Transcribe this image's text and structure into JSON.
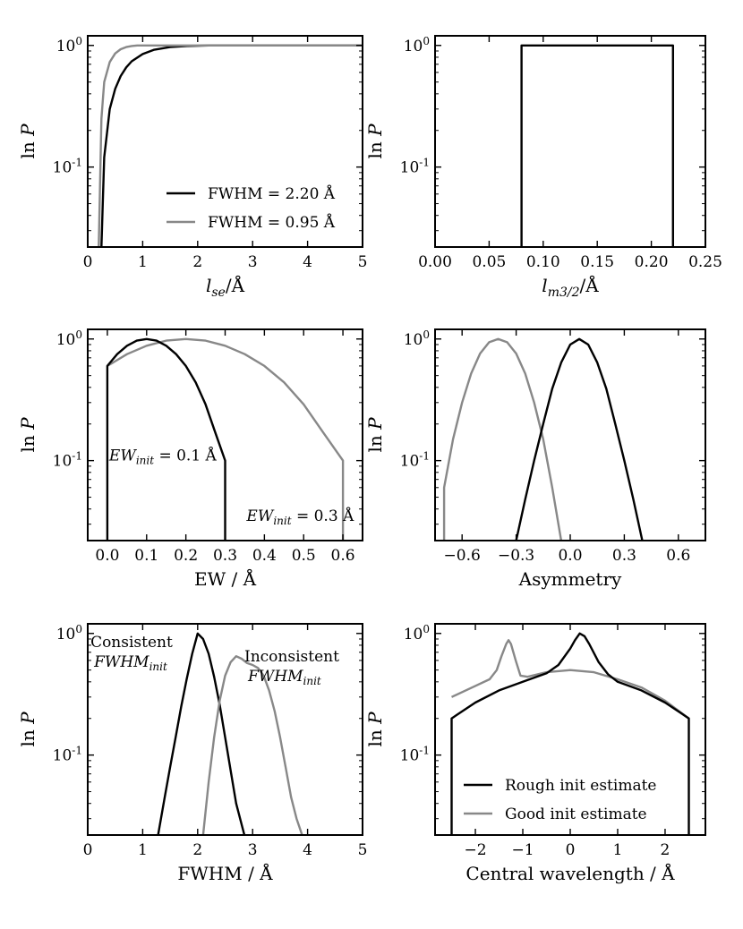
{
  "chart_data": [
    {
      "id": "p1",
      "type": "line",
      "xlabel_main": "l",
      "xlabel_sub": "se",
      "xlabel_suffix": "/Å",
      "ylabel_main": "ln ",
      "ylabel_var": "P",
      "xlim": [
        0,
        5
      ],
      "xticks": [
        0,
        1,
        2,
        3,
        4,
        5
      ],
      "xtick_labels": [
        "0",
        "1",
        "2",
        "3",
        "4",
        "5"
      ],
      "ylog": true,
      "ylim": [
        0.022,
        1.2
      ],
      "yticks": [
        {
          "v": 1,
          "base": "10",
          "exp": "0"
        },
        {
          "v": 0.1,
          "base": "10",
          "exp": "-1"
        }
      ],
      "series": [
        {
          "name": "FWHM = 2.20 Å",
          "color": "#000000",
          "x": [
            0.25,
            0.3,
            0.4,
            0.5,
            0.6,
            0.7,
            0.8,
            1.0,
            1.2,
            1.5,
            1.8,
            2.2,
            3.0,
            5.0
          ],
          "y": [
            0.022,
            0.12,
            0.3,
            0.44,
            0.56,
            0.66,
            0.74,
            0.85,
            0.92,
            0.97,
            0.99,
            1.0,
            1.0,
            1.0
          ]
        },
        {
          "name": "FWHM = 0.95 Å",
          "color": "#888888",
          "x": [
            0.2,
            0.25,
            0.3,
            0.4,
            0.5,
            0.6,
            0.7,
            0.8,
            0.9,
            1.0,
            5.0
          ],
          "y": [
            0.022,
            0.25,
            0.5,
            0.73,
            0.86,
            0.93,
            0.97,
            0.99,
            1.0,
            1.0,
            1.0
          ]
        }
      ],
      "legend": [
        {
          "label": "FWHM = 2.20 Å",
          "color": "#000000"
        },
        {
          "label": "FWHM = 0.95 Å",
          "color": "#888888"
        }
      ],
      "legend_position": "lower-right"
    },
    {
      "id": "p2",
      "type": "line",
      "xlabel_main": "l",
      "xlabel_sub": "m3/2",
      "xlabel_suffix": "/Å",
      "ylabel_main": "ln ",
      "ylabel_var": "P",
      "xlim": [
        0,
        0.25
      ],
      "xticks": [
        0,
        0.05,
        0.1,
        0.15,
        0.2,
        0.25
      ],
      "xtick_labels": [
        "0.00",
        "0.05",
        "0.10",
        "0.15",
        "0.20",
        "0.25"
      ],
      "ylog": true,
      "ylim": [
        0.022,
        1.2
      ],
      "yticks": [
        {
          "v": 1,
          "base": "10",
          "exp": "0"
        },
        {
          "v": 0.1,
          "base": "10",
          "exp": "-1"
        }
      ],
      "series": [
        {
          "color": "#000000",
          "x": [
            0.08,
            0.08,
            0.22,
            0.22
          ],
          "y": [
            0.022,
            1.0,
            1.0,
            0.022
          ]
        }
      ]
    },
    {
      "id": "p3",
      "type": "line",
      "xlabel": "EW / Å",
      "ylabel_main": "ln ",
      "ylabel_var": "P",
      "xlim": [
        -0.05,
        0.65
      ],
      "xticks": [
        0,
        0.1,
        0.2,
        0.3,
        0.4,
        0.5,
        0.6
      ],
      "xtick_labels": [
        "0.0",
        "0.1",
        "0.2",
        "0.3",
        "0.4",
        "0.5",
        "0.6"
      ],
      "ylog": true,
      "ylim": [
        0.022,
        1.2
      ],
      "yticks": [
        {
          "v": 1,
          "base": "10",
          "exp": "0"
        },
        {
          "v": 0.1,
          "base": "10",
          "exp": "-1"
        }
      ],
      "series": [
        {
          "color": "#888888",
          "x": [
            0.0,
            0.05,
            0.1,
            0.15,
            0.2,
            0.25,
            0.3,
            0.35,
            0.4,
            0.45,
            0.5,
            0.55,
            0.6,
            0.6
          ],
          "y": [
            0.6,
            0.75,
            0.88,
            0.97,
            1.0,
            0.97,
            0.88,
            0.75,
            0.6,
            0.44,
            0.29,
            0.17,
            0.1,
            0.022
          ]
        },
        {
          "color": "#000000",
          "x": [
            0.0,
            0.0,
            0.025,
            0.05,
            0.075,
            0.1,
            0.125,
            0.15,
            0.175,
            0.2,
            0.225,
            0.25,
            0.275,
            0.3,
            0.3
          ],
          "y": [
            0.022,
            0.6,
            0.75,
            0.88,
            0.97,
            1.0,
            0.97,
            0.88,
            0.75,
            0.6,
            0.44,
            0.29,
            0.17,
            0.1,
            0.022
          ]
        }
      ],
      "annotations": [
        {
          "main": "EW",
          "sub": "init",
          "rest": " = 0.1 Å",
          "x": 0.0,
          "y": 0.1
        },
        {
          "main": "EW",
          "sub": "init",
          "rest": " = 0.3 Å",
          "x": 0.35,
          "y": 0.032
        }
      ]
    },
    {
      "id": "p4",
      "type": "line",
      "xlabel": "Asymmetry",
      "ylabel_main": "ln ",
      "ylabel_var": "P",
      "xlim": [
        -0.75,
        0.75
      ],
      "xticks": [
        -0.6,
        -0.3,
        0,
        0.3,
        0.6
      ],
      "xtick_labels": [
        "−0.6",
        "−0.3",
        "0.0",
        "0.3",
        "0.6"
      ],
      "ylog": true,
      "ylim": [
        0.022,
        1.2
      ],
      "yticks": [
        {
          "v": 1,
          "base": "10",
          "exp": "0"
        },
        {
          "v": 0.1,
          "base": "10",
          "exp": "-1"
        }
      ],
      "series": [
        {
          "color": "#888888",
          "x": [
            -0.7,
            -0.7,
            -0.65,
            -0.6,
            -0.55,
            -0.5,
            -0.45,
            -0.4,
            -0.35,
            -0.3,
            -0.25,
            -0.2,
            -0.15,
            -0.1,
            -0.05
          ],
          "y": [
            0.022,
            0.06,
            0.15,
            0.3,
            0.52,
            0.76,
            0.94,
            1.0,
            0.94,
            0.76,
            0.52,
            0.3,
            0.15,
            0.06,
            0.022
          ]
        },
        {
          "color": "#000000",
          "x": [
            -0.3,
            -0.25,
            -0.2,
            -0.15,
            -0.1,
            -0.05,
            0.0,
            0.05,
            0.1,
            0.15,
            0.2,
            0.25,
            0.3,
            0.35,
            0.4
          ],
          "y": [
            0.022,
            0.048,
            0.1,
            0.2,
            0.39,
            0.64,
            0.9,
            1.0,
            0.9,
            0.64,
            0.39,
            0.2,
            0.1,
            0.048,
            0.022
          ]
        }
      ]
    },
    {
      "id": "p5",
      "type": "line",
      "xlabel": "FWHM / Å",
      "ylabel_main": "ln ",
      "ylabel_var": "P",
      "xlim": [
        0,
        5
      ],
      "xticks": [
        0,
        1,
        2,
        3,
        4,
        5
      ],
      "xtick_labels": [
        "0",
        "1",
        "2",
        "3",
        "4",
        "5"
      ],
      "ylog": true,
      "ylim": [
        0.022,
        1.2
      ],
      "yticks": [
        {
          "v": 1,
          "base": "10",
          "exp": "0"
        },
        {
          "v": 0.1,
          "base": "10",
          "exp": "-1"
        }
      ],
      "series": [
        {
          "color": "#000000",
          "x": [
            1.28,
            1.4,
            1.5,
            1.6,
            1.7,
            1.8,
            1.9,
            2.0,
            2.1,
            2.2,
            2.3,
            2.4,
            2.5,
            2.6,
            2.7,
            2.85
          ],
          "y": [
            0.022,
            0.045,
            0.08,
            0.14,
            0.25,
            0.42,
            0.68,
            1.0,
            0.9,
            0.68,
            0.44,
            0.26,
            0.14,
            0.075,
            0.04,
            0.022
          ]
        },
        {
          "color": "#888888",
          "x": [
            2.1,
            2.2,
            2.3,
            2.4,
            2.5,
            2.6,
            2.7,
            2.8,
            2.9,
            3.0,
            3.1,
            3.2,
            3.3,
            3.4,
            3.5,
            3.6,
            3.7,
            3.8,
            3.9
          ],
          "y": [
            0.022,
            0.06,
            0.14,
            0.28,
            0.45,
            0.58,
            0.65,
            0.62,
            0.57,
            0.55,
            0.52,
            0.45,
            0.34,
            0.23,
            0.14,
            0.08,
            0.045,
            0.03,
            0.022
          ]
        }
      ],
      "annotations": [
        {
          "title": "Consistent",
          "main": "FWHM",
          "sub": "init",
          "x": 0.05,
          "y": 0.95
        },
        {
          "title": "Inconsistent",
          "main": "FWHM",
          "sub": "init",
          "x": 2.85,
          "y": 0.72
        }
      ]
    },
    {
      "id": "p6",
      "type": "line",
      "xlabel": "Central wavelength / Å",
      "ylabel_main": "ln ",
      "ylabel_var": "P",
      "xlim": [
        -2.85,
        2.85
      ],
      "xticks": [
        -2,
        -1,
        0,
        1,
        2
      ],
      "xtick_labels": [
        "−2",
        "−1",
        "0",
        "1",
        "2"
      ],
      "ylog": true,
      "ylim": [
        0.022,
        1.2
      ],
      "yticks": [
        {
          "v": 1,
          "base": "10",
          "exp": "0"
        },
        {
          "v": 0.1,
          "base": "10",
          "exp": "-1"
        }
      ],
      "series": [
        {
          "name": "Good init estimate",
          "color": "#888888",
          "x": [
            -2.5,
            -2.0,
            -1.7,
            -1.55,
            -1.45,
            -1.35,
            -1.3,
            -1.25,
            -1.15,
            -1.05,
            -0.9,
            -0.5,
            0.0,
            0.5,
            1.0,
            1.5,
            2.0,
            2.5
          ],
          "y": [
            0.3,
            0.37,
            0.42,
            0.5,
            0.65,
            0.82,
            0.88,
            0.82,
            0.6,
            0.45,
            0.44,
            0.48,
            0.5,
            0.48,
            0.42,
            0.36,
            0.28,
            0.2
          ]
        },
        {
          "name": "Rough init estimate",
          "color": "#000000",
          "x": [
            -2.5,
            -2.5,
            -2.0,
            -1.5,
            -1.0,
            -0.5,
            -0.25,
            0.0,
            0.1,
            0.2,
            0.3,
            0.4,
            0.6,
            0.8,
            1.0,
            1.5,
            2.0,
            2.5,
            2.5
          ],
          "y": [
            0.022,
            0.2,
            0.27,
            0.34,
            0.4,
            0.47,
            0.55,
            0.75,
            0.88,
            1.0,
            0.95,
            0.82,
            0.58,
            0.46,
            0.4,
            0.34,
            0.27,
            0.2,
            0.022
          ]
        }
      ],
      "legend": [
        {
          "label": "Rough init estimate",
          "color": "#000000"
        },
        {
          "label": "Good init estimate",
          "color": "#888888"
        }
      ],
      "legend_position": "lower-center"
    }
  ]
}
